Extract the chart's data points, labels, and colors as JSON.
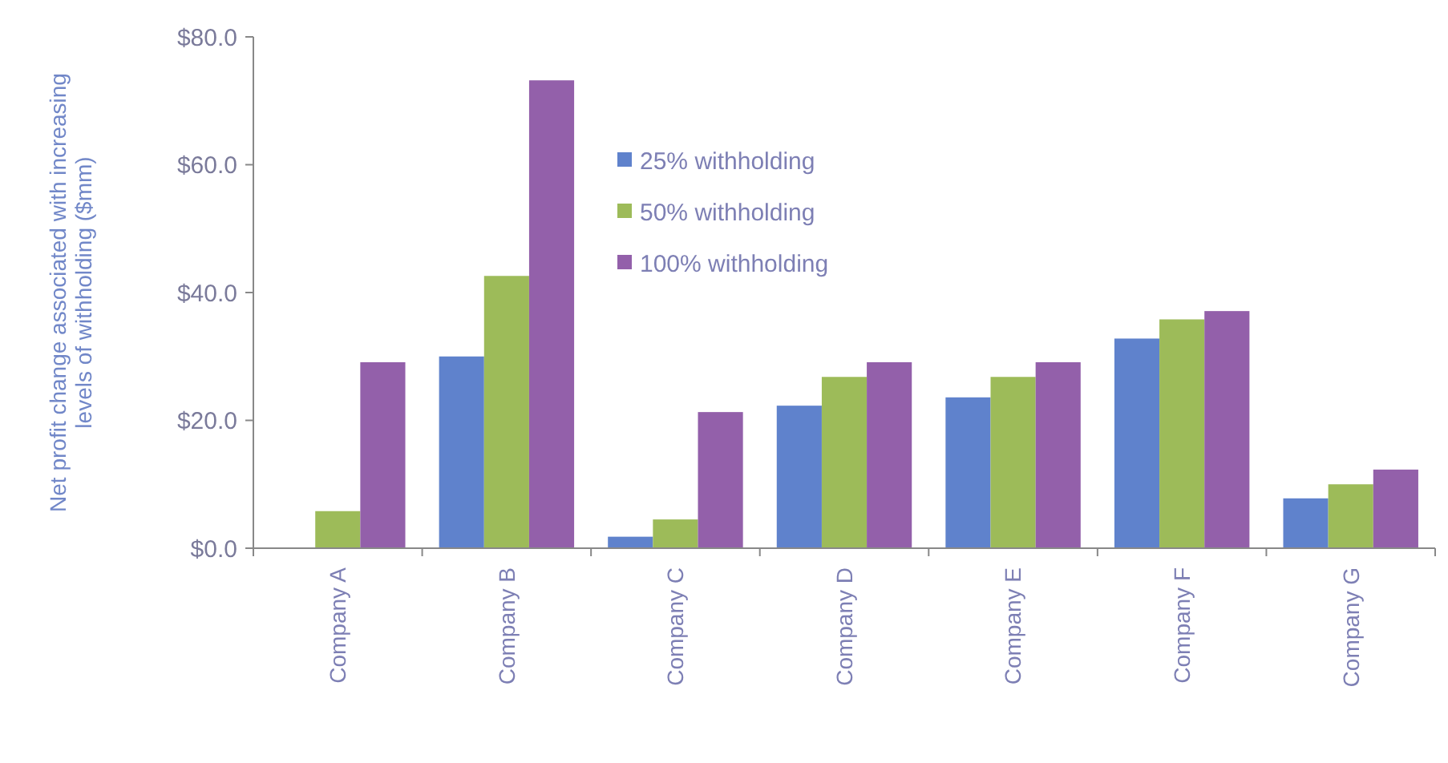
{
  "chart_data": {
    "type": "bar",
    "ylabel": "Net profit change associated with increasing levels of withholding ($mm)",
    "categories": [
      "Company A",
      "Company B",
      "Company C",
      "Company D",
      "Company E",
      "Company F",
      "Company G"
    ],
    "series": [
      {
        "name": "25% withholding",
        "color": "#5f82cc",
        "values": [
          0,
          30.0,
          1.8,
          22.3,
          23.6,
          32.8,
          7.8
        ]
      },
      {
        "name": "50% withholding",
        "color": "#9dbb59",
        "values": [
          5.8,
          42.6,
          4.5,
          26.8,
          26.8,
          35.8,
          10.0
        ]
      },
      {
        "name": "100% withholding",
        "color": "#9360aa",
        "values": [
          29.1,
          73.2,
          21.3,
          29.1,
          29.1,
          37.1,
          12.3
        ]
      }
    ],
    "ylim": [
      0,
      80
    ],
    "yticks": [
      {
        "value": 0,
        "label": "$0.0"
      },
      {
        "value": 20,
        "label": "$20.0"
      },
      {
        "value": 40,
        "label": "$40.0"
      },
      {
        "value": 60,
        "label": "$60.0"
      },
      {
        "value": 80,
        "label": "$80.0"
      }
    ],
    "grid": false,
    "legend": "top"
  }
}
